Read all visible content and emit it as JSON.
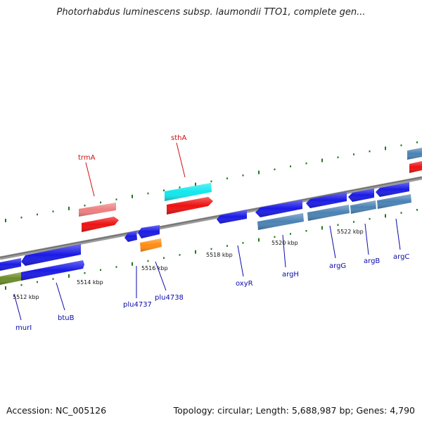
{
  "title": "Photorhabdus luminescens subsp. laumondii TTO1, complete gen...",
  "footer": {
    "accession": "Accession: NC_005126",
    "topology": "Topology: circular; Length: 5,688,987 bp; Genes: 4,790"
  },
  "colors": {
    "backbone": "#8a8a8a",
    "tick": "#1e7a1e",
    "gene_blue": "#1a1ae6",
    "gene_steel": "#4a82b4",
    "gene_red": "#ee1111",
    "gene_pink": "#ee8080",
    "gene_cyan": "#11e8ee",
    "gene_orange": "#ff8c10",
    "gene_olive": "#6a8c28",
    "label_blue": "#0a0aaa",
    "label_red": "#cc1111"
  },
  "scale_labels": [
    "5512 kbp",
    "5514 kbp",
    "5516 kbp",
    "5518 kbp",
    "5520 kbp",
    "5522 kbp"
  ],
  "gene_labels": {
    "top": [
      "trmA",
      "sthA"
    ],
    "bottom": [
      "murI",
      "btuB",
      "plu4737",
      "plu4738",
      "oxyR",
      "argH",
      "argG",
      "argB",
      "argC"
    ]
  }
}
